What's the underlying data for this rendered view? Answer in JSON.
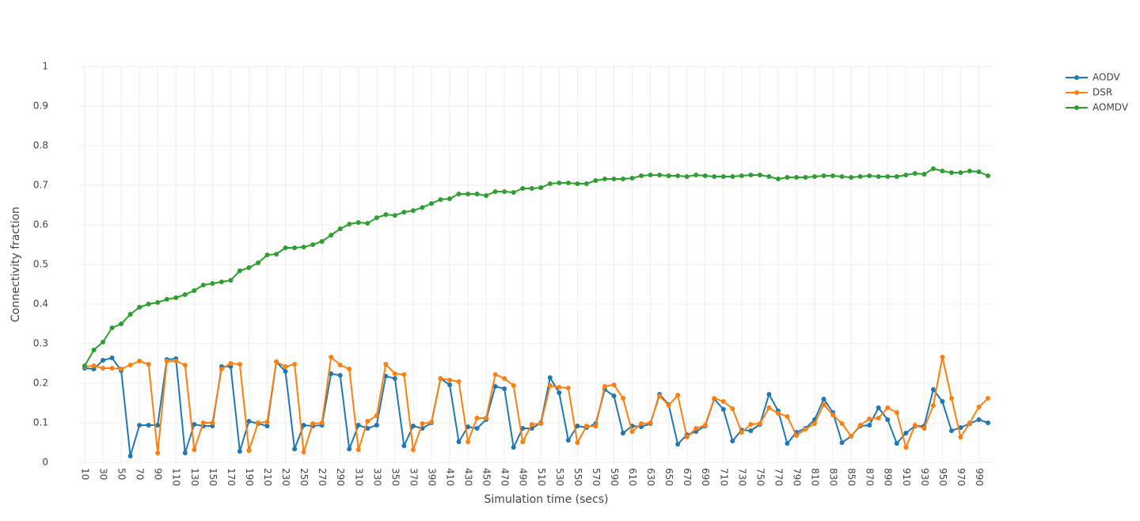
{
  "chart_data": {
    "type": "line",
    "x_label": "Simulation time (secs)",
    "y_label": "Connectivity fraction",
    "x": [
      10,
      20,
      30,
      40,
      50,
      60,
      70,
      80,
      90,
      100,
      110,
      120,
      130,
      140,
      150,
      160,
      170,
      180,
      190,
      200,
      210,
      220,
      230,
      240,
      250,
      260,
      270,
      280,
      290,
      300,
      310,
      320,
      330,
      340,
      350,
      360,
      370,
      380,
      390,
      400,
      410,
      420,
      430,
      440,
      450,
      460,
      470,
      480,
      490,
      500,
      510,
      520,
      530,
      540,
      550,
      560,
      570,
      580,
      590,
      600,
      610,
      620,
      630,
      640,
      650,
      660,
      670,
      680,
      690,
      700,
      710,
      720,
      730,
      740,
      750,
      760,
      770,
      780,
      790,
      800,
      810,
      820,
      830,
      840,
      850,
      860,
      870,
      880,
      890,
      900,
      910,
      920,
      930,
      940,
      950,
      960,
      970,
      980,
      990,
      1000
    ],
    "series": [
      {
        "name": "AODV",
        "color": "#1f77b4",
        "values": [
          0.238,
          0.236,
          0.258,
          0.264,
          0.232,
          0.016,
          0.094,
          0.094,
          0.094,
          0.26,
          0.262,
          0.024,
          0.096,
          0.092,
          0.092,
          0.242,
          0.242,
          0.028,
          0.104,
          0.098,
          0.092,
          0.254,
          0.23,
          0.034,
          0.094,
          0.092,
          0.094,
          0.224,
          0.22,
          0.034,
          0.094,
          0.086,
          0.094,
          0.218,
          0.212,
          0.042,
          0.092,
          0.086,
          0.1,
          0.212,
          0.196,
          0.052,
          0.09,
          0.086,
          0.108,
          0.192,
          0.186,
          0.038,
          0.086,
          0.086,
          0.1,
          0.214,
          0.176,
          0.056,
          0.092,
          0.088,
          0.098,
          0.184,
          0.168,
          0.074,
          0.092,
          0.09,
          0.098,
          0.172,
          0.146,
          0.046,
          0.07,
          0.078,
          0.092,
          0.16,
          0.134,
          0.054,
          0.082,
          0.08,
          0.096,
          0.172,
          0.13,
          0.048,
          0.076,
          0.086,
          0.108,
          0.16,
          0.126,
          0.05,
          0.066,
          0.092,
          0.094,
          0.138,
          0.108,
          0.048,
          0.074,
          0.092,
          0.092,
          0.184,
          0.154,
          0.08,
          0.088,
          0.098,
          0.108,
          0.1
        ]
      },
      {
        "name": "DSR",
        "color": "#ff7f0e",
        "values": [
          0.242,
          0.244,
          0.238,
          0.238,
          0.236,
          0.246,
          0.256,
          0.248,
          0.024,
          0.256,
          0.256,
          0.246,
          0.032,
          0.1,
          0.1,
          0.236,
          0.25,
          0.248,
          0.03,
          0.1,
          0.102,
          0.254,
          0.242,
          0.248,
          0.026,
          0.098,
          0.1,
          0.266,
          0.246,
          0.236,
          0.032,
          0.104,
          0.118,
          0.248,
          0.224,
          0.222,
          0.032,
          0.098,
          0.102,
          0.212,
          0.208,
          0.204,
          0.052,
          0.112,
          0.112,
          0.222,
          0.212,
          0.194,
          0.052,
          0.096,
          0.098,
          0.194,
          0.19,
          0.188,
          0.05,
          0.092,
          0.092,
          0.192,
          0.196,
          0.162,
          0.078,
          0.098,
          0.1,
          0.168,
          0.144,
          0.17,
          0.064,
          0.086,
          0.094,
          0.162,
          0.154,
          0.136,
          0.076,
          0.096,
          0.098,
          0.138,
          0.124,
          0.116,
          0.068,
          0.084,
          0.098,
          0.146,
          0.12,
          0.098,
          0.066,
          0.094,
          0.11,
          0.112,
          0.138,
          0.126,
          0.038,
          0.094,
          0.086,
          0.144,
          0.266,
          0.162,
          0.064,
          0.1,
          0.14,
          0.162
        ]
      },
      {
        "name": "AOMDV",
        "color": "#2ca02c",
        "values": [
          0.244,
          0.284,
          0.304,
          0.34,
          0.35,
          0.374,
          0.392,
          0.4,
          0.404,
          0.412,
          0.416,
          0.424,
          0.434,
          0.448,
          0.452,
          0.456,
          0.46,
          0.484,
          0.492,
          0.504,
          0.524,
          0.526,
          0.542,
          0.542,
          0.544,
          0.55,
          0.558,
          0.574,
          0.59,
          0.602,
          0.606,
          0.604,
          0.618,
          0.626,
          0.624,
          0.632,
          0.636,
          0.644,
          0.654,
          0.664,
          0.666,
          0.678,
          0.678,
          0.678,
          0.674,
          0.684,
          0.684,
          0.682,
          0.692,
          0.692,
          0.694,
          0.704,
          0.706,
          0.706,
          0.704,
          0.704,
          0.712,
          0.716,
          0.716,
          0.716,
          0.718,
          0.724,
          0.726,
          0.726,
          0.724,
          0.724,
          0.722,
          0.726,
          0.724,
          0.722,
          0.722,
          0.722,
          0.724,
          0.726,
          0.726,
          0.722,
          0.716,
          0.72,
          0.72,
          0.72,
          0.722,
          0.724,
          0.724,
          0.722,
          0.72,
          0.722,
          0.724,
          0.722,
          0.722,
          0.722,
          0.726,
          0.73,
          0.728,
          0.742,
          0.736,
          0.732,
          0.732,
          0.736,
          0.734,
          0.724
        ]
      }
    ],
    "xlim": [
      4.8,
      1005.2
    ],
    "ylim": [
      0,
      1
    ],
    "xticks": [
      10,
      30,
      50,
      70,
      90,
      110,
      130,
      150,
      170,
      190,
      210,
      230,
      250,
      270,
      290,
      310,
      330,
      350,
      370,
      390,
      410,
      430,
      450,
      470,
      490,
      510,
      530,
      550,
      570,
      590,
      610,
      630,
      650,
      670,
      690,
      710,
      730,
      750,
      770,
      790,
      810,
      830,
      850,
      870,
      890,
      910,
      930,
      950,
      970,
      990
    ],
    "yticks": [
      0,
      0.1,
      0.2,
      0.3,
      0.4,
      0.5,
      0.6,
      0.7,
      0.8,
      0.9,
      1
    ],
    "grid": true,
    "legend": "top-right"
  }
}
